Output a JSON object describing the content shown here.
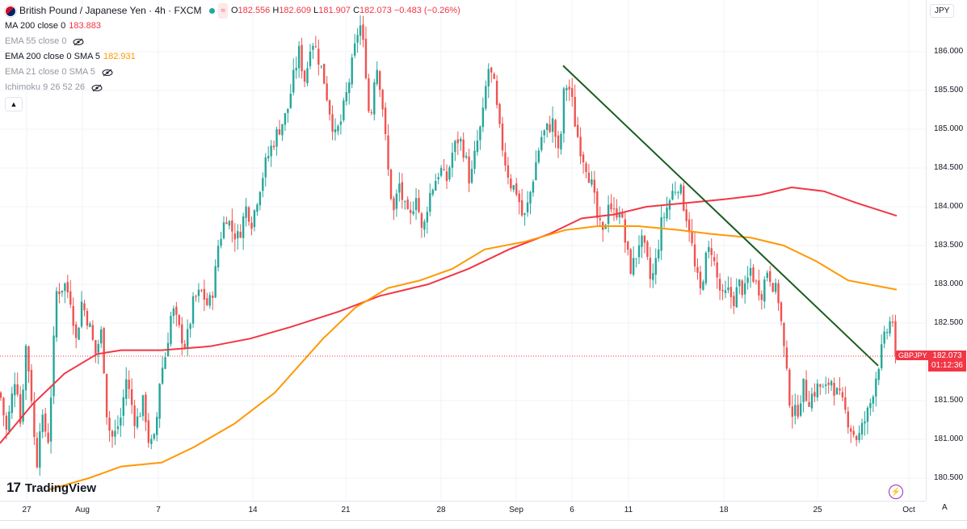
{
  "header": {
    "symbol_title": "British Pound / Japanese Yen · 4h · FXCM",
    "ohlc": {
      "o_label": "O",
      "o": "182.556",
      "h_label": "H",
      "h": "182.609",
      "l_label": "L",
      "l": "181.907",
      "c_label": "C",
      "c": "182.073",
      "change": "−0.483 (−0.26%)"
    }
  },
  "indicators": [
    {
      "name": "MA 200 close 0",
      "value": "183.883",
      "visible": true,
      "color": "#f23645"
    },
    {
      "name": "EMA 55 close 0",
      "value": "",
      "visible": false,
      "color": "#9598a1"
    },
    {
      "name": "EMA 200 close 0 SMA 5",
      "value": "182.931",
      "visible": true,
      "color": "#ff9800"
    },
    {
      "name": "EMA 21 close 0 SMA 5",
      "value": "",
      "visible": false,
      "color": "#9598a1"
    },
    {
      "name": "Ichimoku 9 26 52 26",
      "value": "",
      "visible": false,
      "color": "#9598a1"
    }
  ],
  "axis": {
    "currency": "JPY",
    "price_ticks": [
      "186.000",
      "185.500",
      "185.000",
      "184.500",
      "184.000",
      "183.500",
      "183.000",
      "182.500",
      "181.500",
      "181.000",
      "180.500"
    ],
    "time_ticks": [
      "27",
      "Aug",
      "7",
      "14",
      "21",
      "28",
      "Sep",
      "6",
      "11",
      "18",
      "25",
      "Oct"
    ],
    "auto_label": "A"
  },
  "last_price": {
    "symbol": "GBPJPY",
    "price": "182.073",
    "countdown": "01:12:36"
  },
  "logo": {
    "text": "TradingView",
    "mark": "17"
  },
  "colors": {
    "up": "#26a69a",
    "down": "#ef5350",
    "ma200": "#f23645",
    "ema200": "#ff9800",
    "trendline": "#1b5e20"
  },
  "chart_data": {
    "type": "candlestick",
    "title": "British Pound / Japanese Yen · 4h · FXCM",
    "ylim": [
      180.35,
      186.55
    ],
    "x_ticks": [
      "27",
      "Aug",
      "7",
      "14",
      "21",
      "28",
      "Sep",
      "6",
      "11",
      "18",
      "25",
      "Oct"
    ],
    "anchors": [
      [
        0,
        181.6
      ],
      [
        8,
        181.1
      ],
      [
        20,
        181.9
      ],
      [
        25,
        181.2
      ],
      [
        32,
        182.2
      ],
      [
        38,
        181.7
      ],
      [
        45,
        180.6
      ],
      [
        50,
        181.3
      ],
      [
        60,
        181.0
      ],
      [
        70,
        182.9
      ],
      [
        80,
        183.0
      ],
      [
        88,
        182.8
      ],
      [
        95,
        182.2
      ],
      [
        100,
        182.8
      ],
      [
        110,
        182.5
      ],
      [
        118,
        182.1
      ],
      [
        126,
        182.4
      ],
      [
        133,
        181.2
      ],
      [
        140,
        181.0
      ],
      [
        150,
        181.3
      ],
      [
        156,
        181.8
      ],
      [
        168,
        181.2
      ],
      [
        178,
        181.5
      ],
      [
        185,
        180.9
      ],
      [
        192,
        181.0
      ],
      [
        198,
        181.8
      ],
      [
        205,
        182.1
      ],
      [
        213,
        182.7
      ],
      [
        222,
        182.4
      ],
      [
        230,
        182.2
      ],
      [
        240,
        182.8
      ],
      [
        250,
        182.9
      ],
      [
        258,
        182.7
      ],
      [
        265,
        183.0
      ],
      [
        270,
        183.5
      ],
      [
        280,
        183.9
      ],
      [
        287,
        183.7
      ],
      [
        295,
        183.6
      ],
      [
        305,
        184.0
      ],
      [
        312,
        183.8
      ],
      [
        320,
        184.2
      ],
      [
        330,
        184.6
      ],
      [
        337,
        184.8
      ],
      [
        345,
        185.0
      ],
      [
        355,
        185.2
      ],
      [
        362,
        185.6
      ],
      [
        370,
        186.0
      ],
      [
        378,
        185.6
      ],
      [
        385,
        186.2
      ],
      [
        392,
        186.0
      ],
      [
        400,
        185.7
      ],
      [
        407,
        185.3
      ],
      [
        415,
        184.9
      ],
      [
        422,
        185.1
      ],
      [
        430,
        185.5
      ],
      [
        437,
        185.9
      ],
      [
        445,
        186.4
      ],
      [
        452,
        185.9
      ],
      [
        458,
        185.0
      ],
      [
        465,
        185.9
      ],
      [
        472,
        185.5
      ],
      [
        480,
        184.5
      ],
      [
        487,
        183.9
      ],
      [
        494,
        184.3
      ],
      [
        500,
        184.0
      ],
      [
        507,
        183.8
      ],
      [
        515,
        184.2
      ],
      [
        523,
        183.6
      ],
      [
        530,
        184.1
      ],
      [
        537,
        184.3
      ],
      [
        545,
        184.5
      ],
      [
        552,
        184.3
      ],
      [
        560,
        184.7
      ],
      [
        568,
        184.9
      ],
      [
        575,
        184.7
      ],
      [
        582,
        184.3
      ],
      [
        590,
        184.8
      ],
      [
        597,
        185.1
      ],
      [
        604,
        185.8
      ],
      [
        611,
        185.6
      ],
      [
        618,
        185.0
      ],
      [
        625,
        184.6
      ],
      [
        632,
        184.3
      ],
      [
        640,
        184.2
      ],
      [
        648,
        183.8
      ],
      [
        655,
        184.1
      ],
      [
        662,
        184.5
      ],
      [
        670,
        184.9
      ],
      [
        677,
        185.0
      ],
      [
        685,
        185.1
      ],
      [
        692,
        184.6
      ],
      [
        699,
        185.6
      ],
      [
        706,
        185.5
      ],
      [
        713,
        185.0
      ],
      [
        720,
        184.7
      ],
      [
        727,
        184.5
      ],
      [
        734,
        184.2
      ],
      [
        740,
        183.8
      ],
      [
        747,
        183.6
      ],
      [
        753,
        184.1
      ],
      [
        760,
        183.9
      ],
      [
        767,
        184.0
      ],
      [
        773,
        183.6
      ],
      [
        780,
        183.2
      ],
      [
        786,
        183.3
      ],
      [
        792,
        183.6
      ],
      [
        799,
        183.4
      ],
      [
        806,
        183.0
      ],
      [
        812,
        183.3
      ],
      [
        819,
        183.8
      ],
      [
        826,
        184.0
      ],
      [
        833,
        184.2
      ],
      [
        840,
        184.3
      ],
      [
        847,
        184.0
      ],
      [
        854,
        183.7
      ],
      [
        860,
        183.2
      ],
      [
        867,
        182.9
      ],
      [
        873,
        183.3
      ],
      [
        880,
        183.5
      ],
      [
        887,
        183.1
      ],
      [
        894,
        182.8
      ],
      [
        901,
        182.9
      ],
      [
        908,
        182.8
      ],
      [
        915,
        183.0
      ],
      [
        922,
        182.9
      ],
      [
        929,
        183.2
      ],
      [
        936,
        183.0
      ],
      [
        943,
        182.9
      ],
      [
        950,
        183.2
      ],
      [
        957,
        183.0
      ],
      [
        964,
        182.8
      ],
      [
        970,
        182.2
      ],
      [
        976,
        181.6
      ],
      [
        982,
        181.3
      ],
      [
        988,
        181.4
      ],
      [
        994,
        181.7
      ],
      [
        1000,
        181.5
      ],
      [
        1007,
        181.6
      ],
      [
        1014,
        181.7
      ],
      [
        1021,
        181.6
      ],
      [
        1028,
        181.8
      ],
      [
        1035,
        181.6
      ],
      [
        1041,
        181.5
      ],
      [
        1048,
        181.3
      ],
      [
        1055,
        181.1
      ],
      [
        1062,
        181.0
      ],
      [
        1069,
        181.2
      ],
      [
        1076,
        181.4
      ],
      [
        1082,
        181.7
      ],
      [
        1088,
        182.0
      ],
      [
        1095,
        182.3
      ],
      [
        1101,
        182.5
      ],
      [
        1107,
        182.556
      ],
      [
        1110,
        182.073
      ]
    ],
    "ma200": [
      [
        0,
        180.95
      ],
      [
        40,
        181.45
      ],
      [
        80,
        181.85
      ],
      [
        120,
        182.1
      ],
      [
        150,
        182.15
      ],
      [
        200,
        182.15
      ],
      [
        260,
        182.2
      ],
      [
        310,
        182.3
      ],
      [
        360,
        182.45
      ],
      [
        420,
        182.65
      ],
      [
        470,
        182.85
      ],
      [
        530,
        183.0
      ],
      [
        580,
        183.2
      ],
      [
        630,
        183.45
      ],
      [
        680,
        183.65
      ],
      [
        720,
        183.85
      ],
      [
        760,
        183.9
      ],
      [
        800,
        184.0
      ],
      [
        850,
        184.05
      ],
      [
        900,
        184.1
      ],
      [
        940,
        184.15
      ],
      [
        980,
        184.25
      ],
      [
        1020,
        184.2
      ],
      [
        1060,
        184.05
      ],
      [
        1110,
        183.883
      ]
    ],
    "ema200": [
      [
        60,
        180.35
      ],
      [
        110,
        180.5
      ],
      [
        150,
        180.65
      ],
      [
        200,
        180.7
      ],
      [
        240,
        180.9
      ],
      [
        290,
        181.2
      ],
      [
        340,
        181.6
      ],
      [
        400,
        182.3
      ],
      [
        440,
        182.7
      ],
      [
        480,
        182.95
      ],
      [
        520,
        183.05
      ],
      [
        560,
        183.2
      ],
      [
        600,
        183.45
      ],
      [
        650,
        183.55
      ],
      [
        700,
        183.7
      ],
      [
        740,
        183.75
      ],
      [
        790,
        183.75
      ],
      [
        840,
        183.7
      ],
      [
        880,
        183.65
      ],
      [
        930,
        183.6
      ],
      [
        970,
        183.5
      ],
      [
        1010,
        183.3
      ],
      [
        1050,
        183.05
      ],
      [
        1110,
        182.931
      ]
    ],
    "trendline": [
      [
        697,
        185.82
      ],
      [
        1087,
        181.95
      ]
    ],
    "last_close": 182.073
  }
}
